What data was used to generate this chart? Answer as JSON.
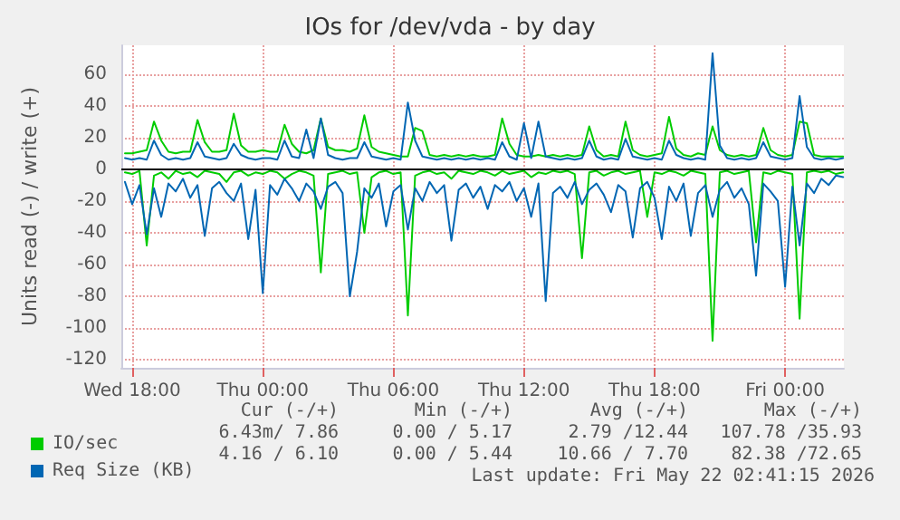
{
  "chart_data": {
    "type": "line",
    "title": "IOs for /dev/vda - by day",
    "ylabel": "Units read (-) / write (+)",
    "x": [
      "2026-05-20T17:40",
      "2026-05-20T18:00",
      "2026-05-20T18:20",
      "2026-05-20T18:40",
      "2026-05-20T19:00",
      "2026-05-20T19:20",
      "2026-05-20T19:40",
      "2026-05-20T20:00",
      "2026-05-20T20:20",
      "2026-05-20T20:40",
      "2026-05-20T21:00",
      "2026-05-20T21:20",
      "2026-05-20T21:40",
      "2026-05-20T22:00",
      "2026-05-20T22:20",
      "2026-05-20T22:40",
      "2026-05-20T23:00",
      "2026-05-20T23:20",
      "2026-05-20T23:40",
      "2026-05-21T00:00",
      "2026-05-21T00:20",
      "2026-05-21T00:40",
      "2026-05-21T01:00",
      "2026-05-21T01:20",
      "2026-05-21T01:40",
      "2026-05-21T02:00",
      "2026-05-21T02:20",
      "2026-05-21T02:40",
      "2026-05-21T03:00",
      "2026-05-21T03:20",
      "2026-05-21T03:40",
      "2026-05-21T04:00",
      "2026-05-21T04:20",
      "2026-05-21T04:40",
      "2026-05-21T05:00",
      "2026-05-21T05:20",
      "2026-05-21T05:40",
      "2026-05-21T06:00",
      "2026-05-21T06:20",
      "2026-05-21T06:40",
      "2026-05-21T07:00",
      "2026-05-21T07:20",
      "2026-05-21T07:40",
      "2026-05-21T08:00",
      "2026-05-21T08:20",
      "2026-05-21T08:40",
      "2026-05-21T09:00",
      "2026-05-21T09:20",
      "2026-05-21T09:40",
      "2026-05-21T10:00",
      "2026-05-21T10:20",
      "2026-05-21T10:40",
      "2026-05-21T11:00",
      "2026-05-21T11:20",
      "2026-05-21T11:40",
      "2026-05-21T12:00",
      "2026-05-21T12:20",
      "2026-05-21T12:40",
      "2026-05-21T13:00",
      "2026-05-21T13:20",
      "2026-05-21T13:40",
      "2026-05-21T14:00",
      "2026-05-21T14:20",
      "2026-05-21T14:40",
      "2026-05-21T15:00",
      "2026-05-21T15:20",
      "2026-05-21T15:40",
      "2026-05-21T16:00",
      "2026-05-21T16:20",
      "2026-05-21T16:40",
      "2026-05-21T17:00",
      "2026-05-21T17:20",
      "2026-05-21T17:40",
      "2026-05-21T18:00",
      "2026-05-21T18:20",
      "2026-05-21T18:40",
      "2026-05-21T19:00",
      "2026-05-21T19:20",
      "2026-05-21T19:40",
      "2026-05-21T20:00",
      "2026-05-21T20:20",
      "2026-05-21T20:40",
      "2026-05-21T21:00",
      "2026-05-21T21:20",
      "2026-05-21T21:40",
      "2026-05-21T22:00",
      "2026-05-21T22:20",
      "2026-05-21T22:40",
      "2026-05-21T23:00",
      "2026-05-21T23:20",
      "2026-05-21T23:40",
      "2026-05-22T00:00",
      "2026-05-22T00:20",
      "2026-05-22T00:40",
      "2026-05-22T01:00",
      "2026-05-22T01:20",
      "2026-05-22T01:40",
      "2026-05-22T02:00",
      "2026-05-22T02:20",
      "2026-05-22T02:40"
    ],
    "series": [
      {
        "color": "#00cc00",
        "values": [
          -2,
          -3,
          -1,
          -48,
          -4,
          -2,
          -6,
          -1,
          -3,
          -2,
          -5,
          -1,
          -2,
          -3,
          -8,
          -2,
          -1,
          -4,
          -2,
          -3,
          -1,
          -2,
          -6,
          -3,
          -1,
          -2,
          -4,
          -65,
          -3,
          -2,
          -1,
          -3,
          -2,
          -40,
          -5,
          -2,
          -1,
          -3,
          -2,
          -92,
          -4,
          -2,
          -1,
          -3,
          -2,
          -6,
          -1,
          -2,
          -3,
          -1,
          -2,
          -4,
          -1,
          -3,
          -2,
          -1,
          -5,
          -2,
          -3,
          -1,
          -2,
          -1,
          -3,
          -56,
          -2,
          -1,
          -4,
          -2,
          -1,
          -3,
          -2,
          -1,
          -30,
          -2,
          -3,
          -1,
          -2,
          -4,
          -1,
          -2,
          -3,
          -108,
          -2,
          -1,
          -3,
          -2,
          -1,
          -46,
          -2,
          -3,
          -1,
          -2,
          -3,
          -94,
          -2,
          -1,
          -2,
          -1,
          -3,
          -2
        ]
      },
      {
        "color": "#0066b3",
        "values": [
          -8,
          -22,
          -10,
          -41,
          -12,
          -30,
          -9,
          -14,
          -6,
          -18,
          -10,
          -42,
          -12,
          -8,
          -15,
          -20,
          -9,
          -44,
          -13,
          -78,
          -10,
          -16,
          -6,
          -12,
          -20,
          -9,
          -14,
          -25,
          -11,
          -8,
          -15,
          -80,
          -52,
          -12,
          -18,
          -9,
          -36,
          -14,
          -10,
          -38,
          -12,
          -20,
          -8,
          -15,
          -10,
          -45,
          -13,
          -9,
          -18,
          -11,
          -25,
          -10,
          -14,
          -8,
          -20,
          -12,
          -30,
          -9,
          -83,
          -15,
          -11,
          -18,
          -8,
          -22,
          -13,
          -9,
          -16,
          -27,
          -10,
          -14,
          -43,
          -12,
          -8,
          -18,
          -44,
          -11,
          -20,
          -9,
          -42,
          -15,
          -10,
          -30,
          -13,
          -8,
          -18,
          -12,
          -22,
          -67,
          -9,
          -14,
          -20,
          -74,
          -11,
          -48,
          -9,
          -15,
          -6,
          -10,
          -4,
          -5
        ]
      },
      {
        "name": "IO/sec",
        "color": "#00cc00",
        "values": [
          10,
          10,
          11,
          12,
          30,
          18,
          11,
          10,
          11,
          11,
          31,
          17,
          11,
          11,
          12,
          35,
          15,
          11,
          11,
          12,
          11,
          11,
          28,
          16,
          11,
          10,
          12,
          32,
          14,
          12,
          12,
          11,
          13,
          34,
          14,
          11,
          10,
          9,
          8,
          8,
          26,
          24,
          9,
          8,
          9,
          8,
          9,
          8,
          9,
          8,
          8,
          9,
          32,
          16,
          9,
          8,
          8,
          9,
          8,
          9,
          8,
          9,
          8,
          9,
          27,
          12,
          8,
          9,
          8,
          30,
          12,
          9,
          8,
          9,
          10,
          33,
          13,
          9,
          8,
          10,
          9,
          27,
          12,
          9,
          8,
          9,
          8,
          9,
          26,
          12,
          9,
          8,
          9,
          30,
          29,
          9,
          8,
          8,
          8,
          8
        ]
      },
      {
        "name": "Req Size (KB)",
        "color": "#0066b3",
        "values": [
          7,
          6,
          7,
          6,
          18,
          9,
          6,
          7,
          6,
          7,
          17,
          8,
          7,
          6,
          7,
          16,
          9,
          7,
          6,
          7,
          7,
          6,
          18,
          8,
          7,
          25,
          7,
          32,
          9,
          7,
          6,
          7,
          7,
          17,
          8,
          7,
          6,
          7,
          6,
          42,
          18,
          8,
          7,
          6,
          7,
          6,
          7,
          6,
          7,
          6,
          7,
          6,
          17,
          8,
          6,
          29,
          7,
          30,
          8,
          7,
          6,
          7,
          6,
          7,
          18,
          8,
          6,
          7,
          6,
          19,
          8,
          7,
          6,
          7,
          6,
          18,
          9,
          7,
          6,
          7,
          6,
          73,
          15,
          7,
          6,
          7,
          6,
          7,
          17,
          8,
          7,
          6,
          7,
          46,
          14,
          7,
          6,
          7,
          6,
          7
        ]
      }
    ],
    "xlim": [
      "2026-05-20T17:30",
      "2026-05-22T02:42"
    ],
    "xticks": [
      {
        "value": "2026-05-20T18:00",
        "label": "Wed 18:00"
      },
      {
        "value": "2026-05-21T00:00",
        "label": "Thu 00:00"
      },
      {
        "value": "2026-05-21T06:00",
        "label": "Thu 06:00"
      },
      {
        "value": "2026-05-21T12:00",
        "label": "Thu 12:00"
      },
      {
        "value": "2026-05-21T18:00",
        "label": "Thu 18:00"
      },
      {
        "value": "2026-05-22T00:00",
        "label": "Fri 00:00"
      }
    ],
    "ylim": [
      -125,
      78
    ],
    "yticks": [
      -120,
      -100,
      -80,
      -60,
      -40,
      -20,
      0,
      20,
      40,
      60
    ],
    "ref_lines": [
      {
        "axis": "y",
        "value": 0,
        "color": "#000000"
      }
    ],
    "grid": true,
    "legend": "bottom left",
    "marker": "none",
    "line_style": "solid",
    "annotations": [
      "Cur (-/+)",
      "Min (-/+)",
      "Avg (-/+)",
      "Max (-/+)",
      "6.43m/ 7.86",
      "0.00 / 5.17",
      "2.79 /12.44",
      "107.78 /35.93",
      "4.16 / 6.10",
      "0.00 / 5.44",
      "10.66 / 7.70",
      "82.38 /72.65",
      "Last update: Fri May 22 02:41:15 2026"
    ]
  }
}
